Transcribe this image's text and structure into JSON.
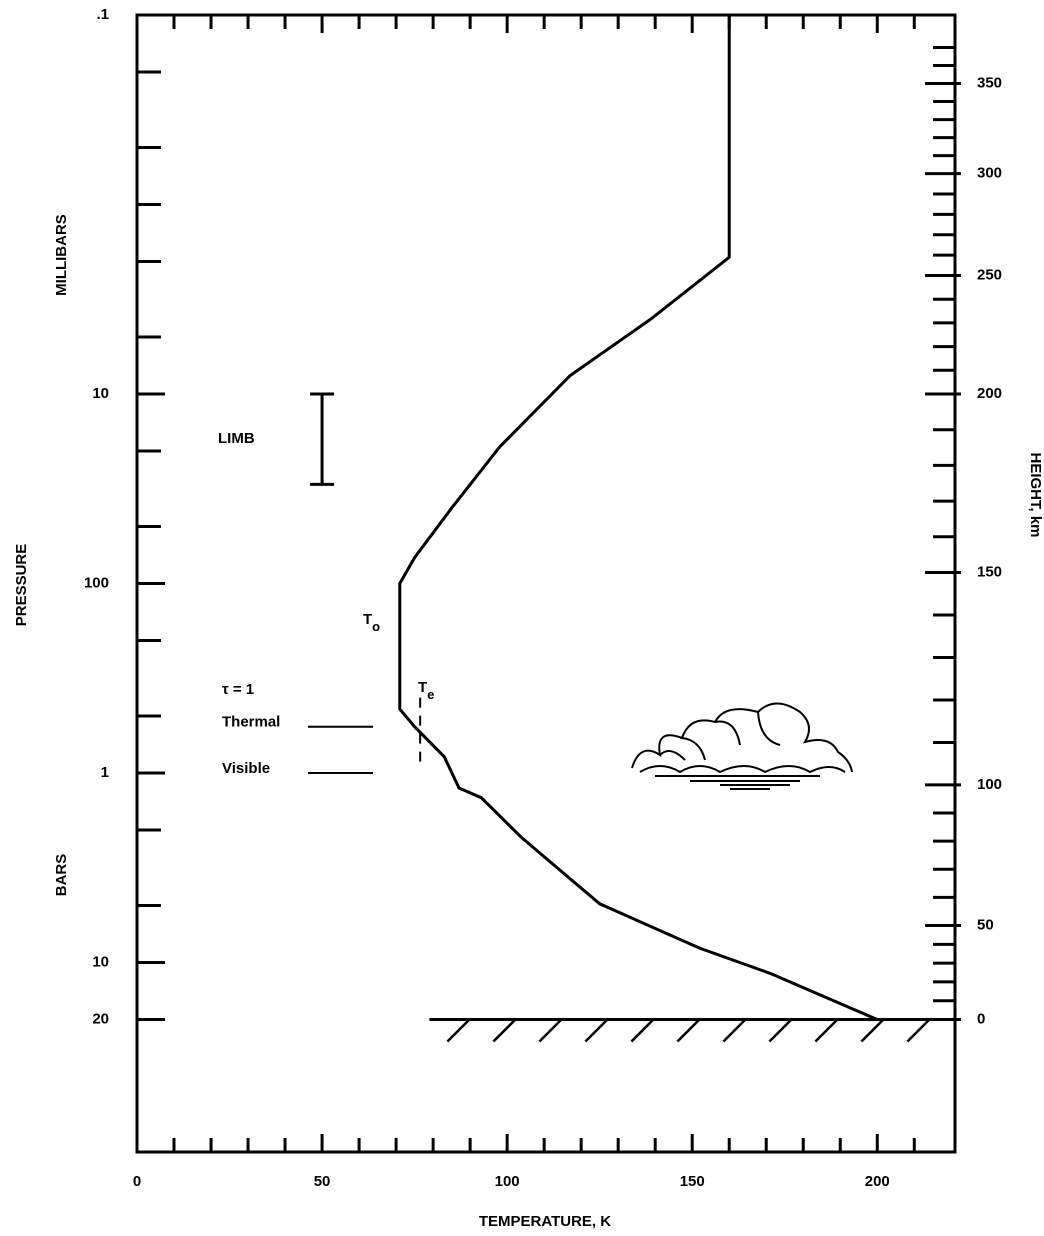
{
  "chart_data": {
    "type": "line",
    "xlabel": "TEMPERATURE, K",
    "ylabel": "PRESSURE",
    "ylabel_upper": "MILLIBARS",
    "ylabel_lower": "BARS",
    "y2label": "HEIGHT, km",
    "xlim": [
      0,
      221
    ],
    "xticks": [
      0,
      50,
      100,
      150,
      200
    ],
    "xminorticks": [
      10,
      20,
      30,
      40,
      60,
      70,
      80,
      90,
      110,
      120,
      130,
      140,
      160,
      170,
      180,
      190,
      210
    ],
    "ylim": [
      0.1,
      100000
    ],
    "ylog": true,
    "yinverted": true,
    "yticks": [
      {
        "value": 0.1,
        "label": ".1"
      },
      10,
      100,
      {
        "value": 1000,
        "label": "1"
      },
      {
        "value": 10000,
        "label": "10"
      },
      {
        "value": 20000,
        "label": "20"
      }
    ],
    "yminorticks": [
      0.2,
      0.5,
      1,
      2,
      5,
      20,
      50,
      200,
      500,
      2000,
      5000
    ],
    "y2ticks": [
      0,
      50,
      100,
      150,
      200,
      250,
      300,
      350
    ],
    "y2_pressure": [
      20000,
      6380,
      1156,
      87.5,
      10,
      2.37,
      0.687,
      0.23
    ],
    "y2minorticks": [
      10,
      20,
      30,
      40,
      60,
      70,
      80,
      90,
      110,
      120,
      130,
      140,
      160,
      170,
      180,
      190,
      210,
      220,
      230,
      240,
      260,
      270,
      280,
      290,
      310,
      320,
      330,
      340,
      360,
      370
    ],
    "series": [
      {
        "color": "#000000",
        "x": [
          160,
          160,
          139,
          117,
          98,
          85,
          75,
          71,
          71,
          75,
          83,
          87,
          93,
          104,
          125,
          152,
          171,
          200
        ],
        "values": [
          0.1,
          1.9,
          4,
          8,
          19,
          40,
          73,
          100,
          460,
          570,
          820,
          1200,
          1350,
          2200,
          4900,
          8400,
          11400,
          20000
        ]
      }
    ],
    "limb": {
      "label": "LIMB",
      "x": 50,
      "range": [
        10,
        30
      ]
    },
    "annotations": {
      "t0": {
        "text": "T",
        "sub": "o"
      },
      "te": {
        "text": "T",
        "sub": "e"
      },
      "tau": "τ = 1",
      "thermal": {
        "label": "Thermal",
        "pressure": 570
      },
      "visible": {
        "label": "Visible",
        "pressure": 1000
      },
      "te_marker": {
        "x": 76.5,
        "range": [
          400,
          900
        ]
      },
      "surface": {
        "pressure": 20000,
        "x": 79
      }
    }
  }
}
